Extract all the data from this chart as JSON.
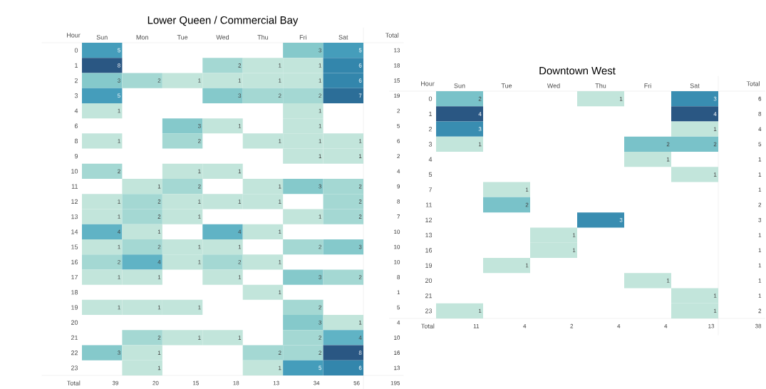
{
  "chart_data": [
    {
      "type": "heatmap",
      "title": "Lower Queen / Commercial Bay",
      "ylabel": "Hour",
      "y2label": "Total",
      "data_labels": true,
      "categories": [
        "Sun",
        "Mon",
        "Tue",
        "Wed",
        "Thu",
        "Fri",
        "Sat"
      ],
      "y_categories": [
        "0",
        "1",
        "2",
        "3",
        "4",
        "6",
        "8",
        "9",
        "10",
        "11",
        "12",
        "13",
        "14",
        "15",
        "16",
        "17",
        "18",
        "19",
        "20",
        "21",
        "22",
        "23"
      ],
      "y2_categories": [
        "13",
        "18",
        "15",
        "19",
        "2",
        "5",
        "6",
        "2",
        "4",
        "9",
        "8",
        "7",
        "10",
        "10",
        "10",
        "8",
        "1",
        "5",
        "4",
        "10",
        "16",
        "13"
      ],
      "cells": [
        [
          5,
          null,
          null,
          null,
          null,
          3,
          5
        ],
        [
          8,
          null,
          null,
          2,
          1,
          1,
          6
        ],
        [
          3,
          2,
          1,
          1,
          1,
          1,
          6
        ],
        [
          5,
          null,
          null,
          3,
          2,
          2,
          7
        ],
        [
          1,
          null,
          null,
          null,
          null,
          1,
          null
        ],
        [
          null,
          null,
          3,
          1,
          null,
          1,
          null
        ],
        [
          1,
          null,
          2,
          null,
          1,
          1,
          1
        ],
        [
          null,
          null,
          null,
          null,
          null,
          1,
          1
        ],
        [
          2,
          null,
          1,
          1,
          null,
          null,
          null
        ],
        [
          null,
          1,
          2,
          null,
          1,
          3,
          2
        ],
        [
          1,
          2,
          1,
          1,
          1,
          null,
          2
        ],
        [
          1,
          2,
          1,
          null,
          null,
          1,
          2
        ],
        [
          4,
          1,
          null,
          4,
          1,
          null,
          null
        ],
        [
          1,
          2,
          1,
          1,
          null,
          2,
          3
        ],
        [
          2,
          4,
          1,
          2,
          1,
          null,
          null
        ],
        [
          1,
          1,
          null,
          1,
          null,
          3,
          2
        ],
        [
          null,
          null,
          null,
          null,
          1,
          null,
          null
        ],
        [
          1,
          1,
          1,
          null,
          null,
          2,
          null
        ],
        [
          null,
          null,
          null,
          null,
          null,
          3,
          1
        ],
        [
          null,
          2,
          1,
          1,
          null,
          2,
          4
        ],
        [
          3,
          1,
          null,
          null,
          2,
          2,
          8
        ],
        [
          null,
          1,
          null,
          null,
          1,
          5,
          6
        ]
      ],
      "annotations": [
        "Total",
        "39",
        "20",
        "15",
        "18",
        "13",
        "34",
        "56",
        "195"
      ]
    },
    {
      "type": "heatmap",
      "title": "Downtown West",
      "ylabel": "Hour",
      "y2label": "Total",
      "data_labels": true,
      "categories": [
        "Sun",
        "Tue",
        "Wed",
        "Thu",
        "Fri",
        "Sat"
      ],
      "y_categories": [
        "0",
        "1",
        "2",
        "3",
        "4",
        "5",
        "7",
        "11",
        "12",
        "13",
        "16",
        "19",
        "20",
        "21",
        "23"
      ],
      "y2_categories": [
        "6",
        "8",
        "4",
        "5",
        "1",
        "1",
        "1",
        "2",
        "3",
        "1",
        "1",
        "1",
        "1",
        "1",
        "2"
      ],
      "cells": [
        [
          2,
          null,
          null,
          1,
          null,
          3
        ],
        [
          4,
          null,
          null,
          null,
          null,
          4
        ],
        [
          3,
          null,
          null,
          null,
          null,
          1
        ],
        [
          1,
          null,
          null,
          null,
          2,
          2
        ],
        [
          null,
          null,
          null,
          null,
          1,
          null
        ],
        [
          null,
          null,
          null,
          null,
          null,
          1
        ],
        [
          null,
          1,
          null,
          null,
          null,
          null
        ],
        [
          null,
          2,
          null,
          null,
          null,
          null
        ],
        [
          null,
          null,
          null,
          3,
          null,
          null
        ],
        [
          null,
          null,
          1,
          null,
          null,
          null
        ],
        [
          null,
          null,
          1,
          null,
          null,
          null
        ],
        [
          null,
          1,
          null,
          null,
          null,
          null
        ],
        [
          null,
          null,
          null,
          null,
          1,
          null
        ],
        [
          null,
          null,
          null,
          null,
          null,
          1
        ],
        [
          1,
          null,
          null,
          null,
          null,
          1
        ]
      ],
      "annotations": [
        "Total",
        "11",
        "4",
        "2",
        "4",
        "4",
        "13",
        "38"
      ]
    }
  ]
}
